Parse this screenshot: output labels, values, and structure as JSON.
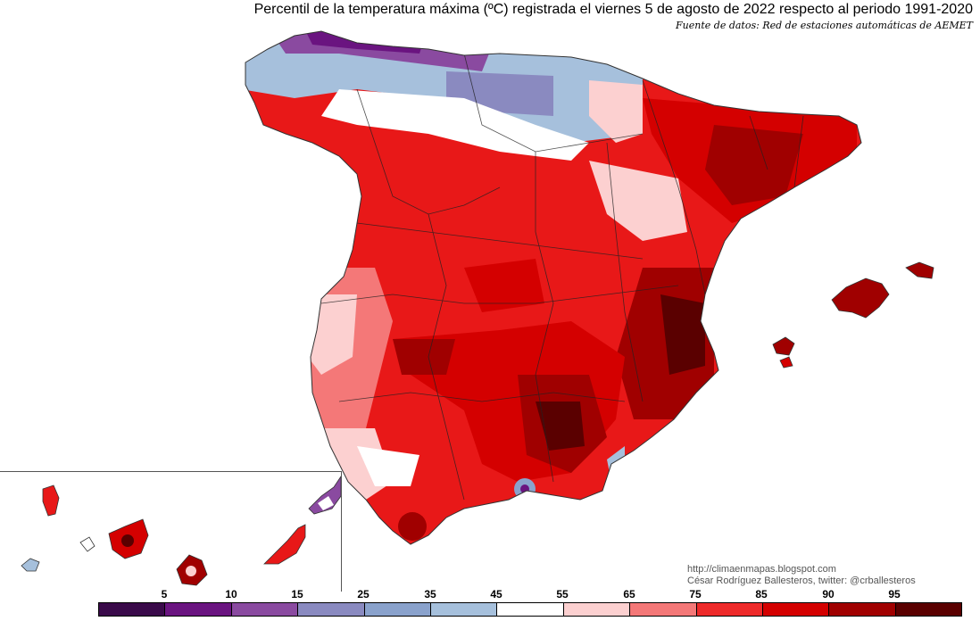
{
  "header": {
    "title": "Percentil de la temperatura máxima (ºC) registrada el viernes 5 de agosto de 2022 respecto al periodo 1991-2020",
    "source": "Fuente de datos: Red de estaciones automáticas de AEMET"
  },
  "credits": {
    "website": "http://climaenmapas.blogspot.com",
    "author": "César Rodríguez Ballesteros, twitter: @crballesteros"
  },
  "legend": {
    "labels": [
      "5",
      "10",
      "15",
      "25",
      "35",
      "45",
      "55",
      "65",
      "75",
      "85",
      "90",
      "95"
    ],
    "colors": [
      "#3a0a4a",
      "#6a1480",
      "#8a4aa0",
      "#8a8ac0",
      "#8aa2cc",
      "#a6c0dc",
      "#ffffff",
      "#fcd0d0",
      "#f47878",
      "#ee2a2a",
      "#d40000",
      "#a00000",
      "#5a0000"
    ]
  },
  "map": {
    "regions": [
      "Península",
      "Baleares",
      "Canarias"
    ]
  }
}
